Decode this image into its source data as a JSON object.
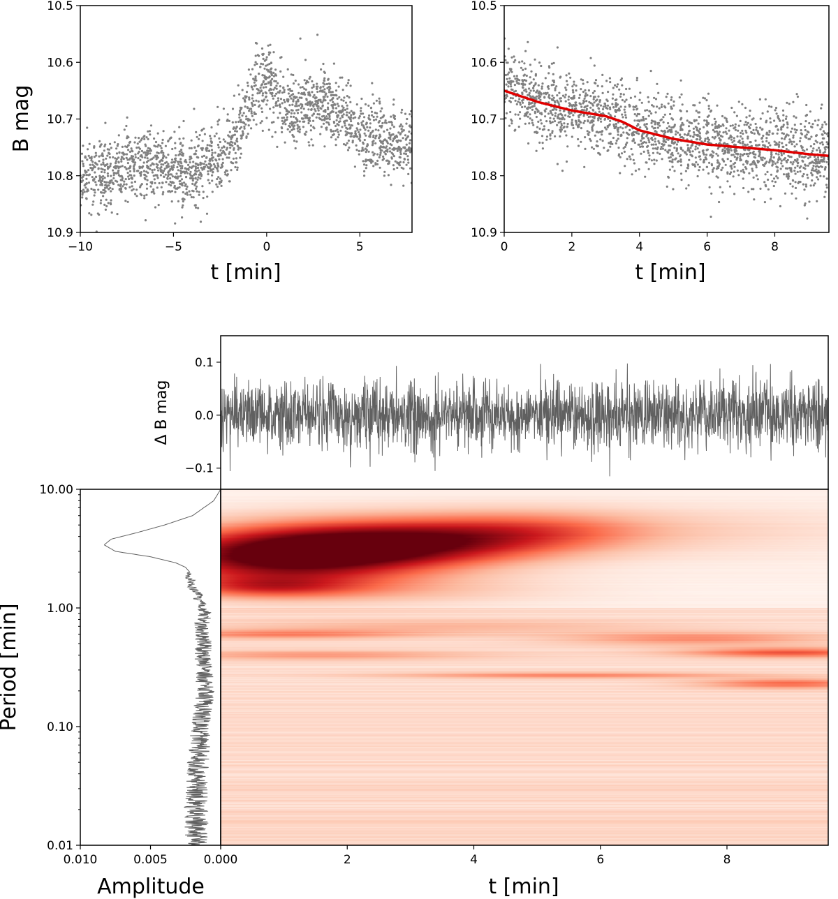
{
  "chart_data": [
    {
      "id": "top-left",
      "type": "scatter",
      "xlabel": "t [min]",
      "ylabel": "B mag",
      "xlim": [
        -10,
        7.8
      ],
      "ylim": [
        10.9,
        10.5
      ],
      "xticks": [
        -10,
        -5,
        0,
        5
      ],
      "xtick_labels": [
        "−10",
        "−5",
        "0",
        "5"
      ],
      "yticks": [
        10.5,
        10.6,
        10.7,
        10.8,
        10.9
      ],
      "ytick_labels": [
        "10.5",
        "10.6",
        "10.7",
        "10.8",
        "10.9"
      ],
      "point_color": "#808080",
      "trend": {
        "t": [
          -10,
          -8,
          -6,
          -4,
          -2.5,
          -2,
          -1.5,
          -1,
          -0.5,
          0,
          0.5,
          1,
          1.5,
          2,
          3,
          4,
          5,
          6,
          7.8
        ],
        "mag": [
          10.8,
          10.79,
          10.78,
          10.8,
          10.77,
          10.75,
          10.72,
          10.68,
          10.64,
          10.63,
          10.65,
          10.68,
          10.69,
          10.68,
          10.67,
          10.69,
          10.72,
          10.74,
          10.75
        ]
      },
      "scatter_sigma": 0.03,
      "n_points": 2000
    },
    {
      "id": "top-right",
      "type": "scatter",
      "xlabel": "t [min]",
      "ylabel": "",
      "xlim": [
        0,
        9.6
      ],
      "ylim": [
        10.9,
        10.5
      ],
      "xticks": [
        0,
        2,
        4,
        6,
        8
      ],
      "xtick_labels": [
        "0",
        "2",
        "4",
        "6",
        "8"
      ],
      "yticks": [
        10.5,
        10.6,
        10.7,
        10.8,
        10.9
      ],
      "ytick_labels": [
        "10.5",
        "10.6",
        "10.7",
        "10.8",
        "10.9"
      ],
      "point_color": "#808080",
      "fit_color": "#e00000",
      "fit": {
        "t": [
          0,
          1,
          2,
          3,
          3.5,
          4,
          5,
          6,
          7,
          8,
          9,
          9.6
        ],
        "mag": [
          10.65,
          10.67,
          10.685,
          10.695,
          10.705,
          10.72,
          10.735,
          10.745,
          10.75,
          10.755,
          10.762,
          10.765
        ]
      },
      "scatter_sigma": 0.035,
      "n_points": 1900
    },
    {
      "id": "residuals",
      "type": "line",
      "ylabel": "Δ B mag",
      "xlim": [
        0,
        9.6
      ],
      "ylim": [
        -0.14,
        0.15
      ],
      "yticks": [
        0.1,
        0.0,
        -0.1
      ],
      "ytick_labels": [
        "0.1",
        "0.0",
        "−0.1"
      ],
      "line_color": "#606060",
      "n_points": 2200,
      "sigma": 0.032
    },
    {
      "id": "wavelet",
      "type": "heatmap",
      "xlabel": "t [min]",
      "xlim": [
        0,
        9.6
      ],
      "ylim_log": [
        0.01,
        10
      ],
      "xticks": [
        0,
        2,
        4,
        6,
        8
      ],
      "xtick_labels": [
        "0.000",
        "2",
        "4",
        "6",
        "8"
      ],
      "colormap": "Reds",
      "blobs": [
        {
          "t": 1.0,
          "p": 2.7,
          "amp": 1.0,
          "st": 1.6,
          "sp": 0.17
        },
        {
          "t": 3.0,
          "p": 3.6,
          "amp": 0.75,
          "st": 1.6,
          "sp": 0.14
        },
        {
          "t": 5.0,
          "p": 4.5,
          "amp": 0.35,
          "st": 1.3,
          "sp": 0.12
        },
        {
          "t": 0.7,
          "p": 1.5,
          "amp": 0.35,
          "st": 1.0,
          "sp": 0.06
        },
        {
          "t": 2.5,
          "p": 1.4,
          "amp": 0.18,
          "st": 2.0,
          "sp": 0.08
        },
        {
          "t": 7.5,
          "p": 4.5,
          "amp": 0.12,
          "st": 2.0,
          "sp": 0.15
        },
        {
          "t": 9.0,
          "p": 0.42,
          "amp": 0.45,
          "st": 1.2,
          "sp": 0.03
        },
        {
          "t": 7.5,
          "p": 0.55,
          "amp": 0.3,
          "st": 1.5,
          "sp": 0.04
        },
        {
          "t": 9.0,
          "p": 0.23,
          "amp": 0.4,
          "st": 1.0,
          "sp": 0.03
        },
        {
          "t": 5.5,
          "p": 0.27,
          "amp": 0.3,
          "st": 2.0,
          "sp": 0.02
        },
        {
          "t": 1.0,
          "p": 0.6,
          "amp": 0.3,
          "st": 1.5,
          "sp": 0.03
        },
        {
          "t": 1.5,
          "p": 0.4,
          "amp": 0.25,
          "st": 1.8,
          "sp": 0.03
        },
        {
          "t": 3.5,
          "p": 0.7,
          "amp": 0.18,
          "st": 2.5,
          "sp": 0.04
        }
      ]
    },
    {
      "id": "amplitude",
      "type": "line",
      "xlabel": "Amplitude",
      "ylabel": "Period [min]",
      "xlim": [
        0.01,
        0.0
      ],
      "ylim_log": [
        0.01,
        10
      ],
      "xticks": [
        0.01,
        0.005,
        0.0
      ],
      "xtick_labels": [
        "0.010",
        "0.005",
        "0.000"
      ],
      "yticks": [
        0.01,
        0.1,
        1,
        10
      ],
      "ytick_labels": [
        "0.01",
        "0.10",
        "1.00",
        "10.00"
      ],
      "line_color": "#606060",
      "profile": {
        "period": [
          10,
          8,
          6,
          5,
          4.3,
          3.8,
          3.4,
          3.0,
          2.7,
          2.4,
          2.2,
          2.0,
          1.85,
          1.7,
          1.55,
          1.4,
          1.3,
          1.2,
          1.1,
          1.0,
          0.9,
          0.8,
          0.7,
          0.6,
          0.5,
          0.4,
          0.3,
          0.2,
          0.1,
          0.05,
          0.02,
          0.01
        ],
        "amp": [
          0.0,
          0.0005,
          0.002,
          0.004,
          0.006,
          0.0078,
          0.0083,
          0.0075,
          0.005,
          0.0032,
          0.0025,
          0.0022,
          0.0024,
          0.002,
          0.0022,
          0.0018,
          0.0015,
          0.0017,
          0.0013,
          0.0014,
          0.0011,
          0.0012,
          0.0015,
          0.0013,
          0.0012,
          0.0013,
          0.0012,
          0.0011,
          0.0014,
          0.0016,
          0.0018,
          0.0016
        ]
      }
    }
  ]
}
